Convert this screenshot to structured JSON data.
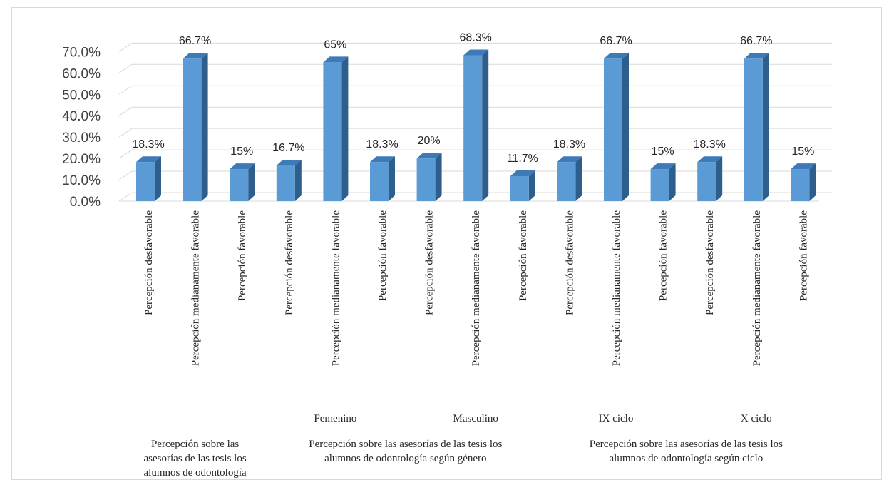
{
  "chart_data": {
    "type": "bar",
    "style": "3d-column",
    "colors": {
      "front": "#5b9bd5",
      "side": "#2e5f8c",
      "top": "#3f7ab8",
      "grid": "#d9d9d9",
      "axis_text": "#404040"
    },
    "ylim": [
      0,
      70
    ],
    "yticks": [
      "0.0%",
      "10.0%",
      "20.0%",
      "30.0%",
      "40.0%",
      "50.0%",
      "60.0%",
      "70.0%"
    ],
    "grid": true,
    "legend": "none",
    "bars": [
      {
        "label": "Percepción desfavorable",
        "value": 18.3,
        "display": "18.3%"
      },
      {
        "label": "Percepción medianamente favorable",
        "value": 66.7,
        "display": "66.7%"
      },
      {
        "label": "Percepción favorable",
        "value": 15,
        "display": "15%"
      },
      {
        "label": "Percepción desfavorable",
        "value": 16.7,
        "display": "16.7%"
      },
      {
        "label": "Percepción medianamente favorable",
        "value": 65,
        "display": "65%"
      },
      {
        "label": "Percepción favorable",
        "value": 18.3,
        "display": "18.3%"
      },
      {
        "label": "Percepción desfavorable",
        "value": 20,
        "display": "20%"
      },
      {
        "label": "Percepción medianamente favorable",
        "value": 68.3,
        "display": "68.3%"
      },
      {
        "label": "Percepción favorable",
        "value": 11.7,
        "display": "11.7%"
      },
      {
        "label": "Percepción desfavorable",
        "value": 18.3,
        "display": "18.3%"
      },
      {
        "label": "Percepción medianamente favorable",
        "value": 66.7,
        "display": "66.7%"
      },
      {
        "label": "Percepción favorable",
        "value": 15,
        "display": "15%"
      },
      {
        "label": "Percepción desfavorable",
        "value": 18.3,
        "display": "18.3%"
      },
      {
        "label": "Percepción medianamente favorable",
        "value": 66.7,
        "display": "66.7%"
      },
      {
        "label": "Percepción favorable",
        "value": 15,
        "display": "15%"
      }
    ],
    "subgroups": [
      {
        "label": "Femenino",
        "from": 3,
        "to": 5
      },
      {
        "label": "Masculino",
        "from": 6,
        "to": 8
      },
      {
        "label": "IX ciclo",
        "from": 9,
        "to": 11
      },
      {
        "label": "X ciclo",
        "from": 12,
        "to": 14
      }
    ],
    "groups": [
      {
        "lines": [
          "Percepción sobre las",
          "asesorías de las tesis los",
          "alumnos de odontología"
        ],
        "from": 0,
        "to": 2
      },
      {
        "lines": [
          "Percepción sobre las asesorías de las tesis los",
          "alumnos de odontología según género"
        ],
        "from": 3,
        "to": 8
      },
      {
        "lines": [
          "Percepción sobre las asesorías de las tesis los",
          "alumnos de odontología según ciclo"
        ],
        "from": 9,
        "to": 14
      }
    ]
  }
}
